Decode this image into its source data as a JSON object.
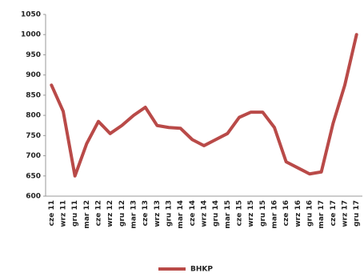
{
  "chart_data": {
    "type": "line",
    "categories": [
      "cze 11",
      "wrz 11",
      "gru 11",
      "mar 12",
      "cze 12",
      "wrz 12",
      "gru 12",
      "mar 13",
      "cze 13",
      "wrz 13",
      "gru 13",
      "mar 14",
      "cze 14",
      "wrz 14",
      "gru 14",
      "mar 15",
      "cze 15",
      "wrz 15",
      "gru 15",
      "mar 16",
      "cze 16",
      "wrz 16",
      "gru 16",
      "mar 17",
      "cze 17",
      "wrz 17",
      "gru 17"
    ],
    "series": [
      {
        "name": "BHKP",
        "color": "#b94a48",
        "values": [
          875,
          810,
          650,
          730,
          785,
          755,
          775,
          800,
          820,
          775,
          770,
          768,
          740,
          725,
          740,
          755,
          795,
          808,
          808,
          770,
          685,
          670,
          655,
          660,
          780,
          875,
          1000
        ]
      }
    ],
    "ylim": [
      600,
      1050
    ],
    "yticks": [
      600,
      650,
      700,
      750,
      800,
      850,
      900,
      950,
      1000,
      1050
    ],
    "grid": false,
    "legend": "bottom"
  }
}
